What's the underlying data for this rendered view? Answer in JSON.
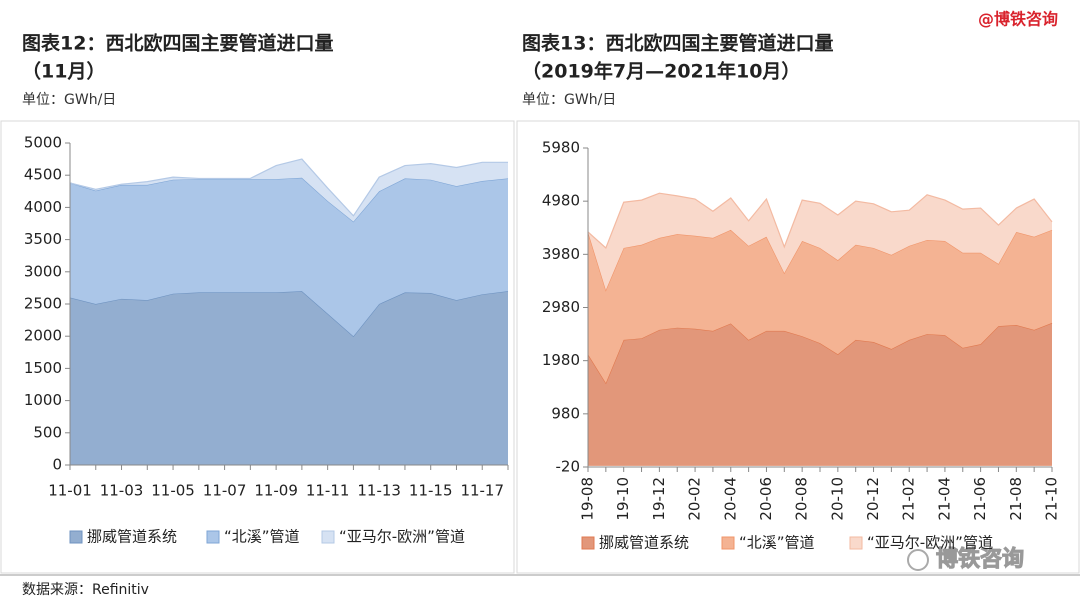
{
  "brand": "@博铁咨询",
  "logo_text": "博铁咨询",
  "source": "数据来源：Refinitiv",
  "chart_data": [
    {
      "type": "stacked_area",
      "title": "图表12：西北欧四国主要管道进口量",
      "subtitle": "（11月）",
      "unit_label": "单位：GWh/日",
      "categories": [
        "11-01",
        null,
        "11-03",
        null,
        "11-05",
        null,
        "11-07",
        null,
        "11-09",
        null,
        "11-11",
        null,
        "11-13",
        null,
        "11-15",
        null,
        "11-17",
        null
      ],
      "ylim": [
        0,
        5000
      ],
      "yticks": [
        0,
        500,
        1000,
        1500,
        2000,
        2500,
        3000,
        3500,
        4000,
        4500,
        5000
      ],
      "series": [
        {
          "name": "挪威管道系统",
          "color": "#93aed0",
          "line_color": "#6f93c0",
          "values": [
            2600,
            2500,
            2580,
            2560,
            2660,
            2680,
            2680,
            2680,
            2680,
            2700,
            2350,
            2000,
            2500,
            2680,
            2670,
            2560,
            2650,
            2700
          ]
        },
        {
          "name": "“北溪”管道",
          "color": "#abc6e8",
          "line_color": "#7fa6d6",
          "values": [
            1780,
            1760,
            1770,
            1790,
            1770,
            1760,
            1760,
            1760,
            1760,
            1760,
            1750,
            1780,
            1750,
            1770,
            1760,
            1770,
            1760,
            1750
          ]
        },
        {
          "name": "“亚马尔-欧洲”管道",
          "color": "#d6e2f3",
          "line_color": "#b4c9e6",
          "values": [
            0,
            20,
            10,
            50,
            40,
            10,
            10,
            10,
            210,
            290,
            200,
            90,
            220,
            200,
            250,
            290,
            290,
            250
          ]
        }
      ]
    },
    {
      "type": "stacked_area",
      "title": "图表13：西北欧四国主要管道进口量",
      "subtitle": "（2019年7月—2021年10月）",
      "unit_label": "单位：GWh/日",
      "categories": [
        "19-08",
        null,
        "19-10",
        null,
        "19-12",
        null,
        "20-02",
        null,
        "20-04",
        null,
        "20-06",
        null,
        "20-08",
        null,
        "20-10",
        null,
        "20-12",
        null,
        "21-02",
        null,
        "21-04",
        null,
        "21-06",
        null,
        "21-08",
        null,
        "21-10"
      ],
      "ylim": [
        -20,
        5980
      ],
      "yticks": [
        -20,
        980,
        1980,
        2980,
        3980,
        4980,
        5980
      ],
      "series": [
        {
          "name": "挪威管道系统",
          "color": "#e2977a",
          "line_color": "#e07a50",
          "values": [
            2100,
            1560,
            2370,
            2400,
            2560,
            2600,
            2580,
            2540,
            2680,
            2370,
            2540,
            2540,
            2440,
            2310,
            2100,
            2370,
            2330,
            2200,
            2370,
            2480,
            2460,
            2220,
            2290,
            2630,
            2650,
            2560,
            2690
          ]
        },
        {
          "name": "“北溪”管道",
          "color": "#f4b393",
          "line_color": "#f0956a",
          "values": [
            2300,
            1750,
            1730,
            1760,
            1730,
            1760,
            1750,
            1750,
            1760,
            1770,
            1770,
            1090,
            1790,
            1790,
            1770,
            1790,
            1770,
            1770,
            1770,
            1770,
            1770,
            1790,
            1720,
            1170,
            1750,
            1750,
            1750
          ]
        },
        {
          "name": "“亚马尔-欧洲”管道",
          "color": "#f9d9cb",
          "line_color": "#f3baa2",
          "values": [
            0,
            790,
            860,
            840,
            840,
            720,
            690,
            500,
            600,
            470,
            710,
            490,
            770,
            840,
            850,
            820,
            830,
            810,
            670,
            850,
            770,
            820,
            840,
            730,
            450,
            710,
            150
          ]
        }
      ]
    }
  ]
}
